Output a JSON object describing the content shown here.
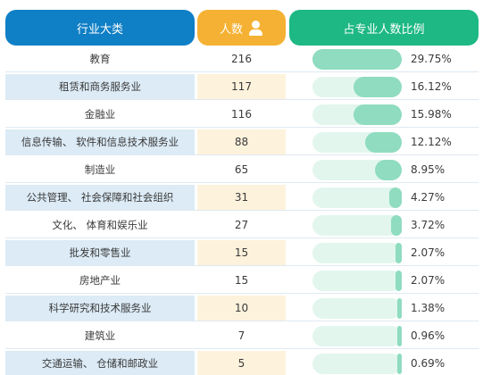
{
  "header": {
    "industry_label": "行业大类",
    "count_label": "人数",
    "count_icon": "person-icon",
    "percent_label": "占专业人数比例"
  },
  "rows": [
    {
      "industry": "教育",
      "count": "216",
      "percent": "29.75%",
      "share": 29.75
    },
    {
      "industry": "租赁和商务服务业",
      "count": "117",
      "percent": "16.12%",
      "share": 16.12
    },
    {
      "industry": "金融业",
      "count": "116",
      "percent": "15.98%",
      "share": 15.98
    },
    {
      "industry": "信息传输、 软件和信息技术服务业",
      "count": "88",
      "percent": "12.12%",
      "share": 12.12
    },
    {
      "industry": "制造业",
      "count": "65",
      "percent": "8.95%",
      "share": 8.95
    },
    {
      "industry": "公共管理、 社会保障和社会组织",
      "count": "31",
      "percent": "4.27%",
      "share": 4.27
    },
    {
      "industry": "文化、 体育和娱乐业",
      "count": "27",
      "percent": "3.72%",
      "share": 3.72
    },
    {
      "industry": "批发和零售业",
      "count": "15",
      "percent": "2.07%",
      "share": 2.07
    },
    {
      "industry": "房地产业",
      "count": "15",
      "percent": "2.07%",
      "share": 2.07
    },
    {
      "industry": "科学研究和技术服务业",
      "count": "10",
      "percent": "1.38%",
      "share": 1.38
    },
    {
      "industry": "建筑业",
      "count": "7",
      "percent": "0.96%",
      "share": 0.96
    },
    {
      "industry": "交通运输、 仓储和邮政业",
      "count": "5",
      "percent": "0.69%",
      "share": 0.69
    }
  ],
  "colors": {
    "industry_header": "#0f7fc6",
    "count_header": "#f5b133",
    "percent_header": "#1db883",
    "bar_fill": "#8fdcc0",
    "bar_track": "#e2f6ee"
  }
}
